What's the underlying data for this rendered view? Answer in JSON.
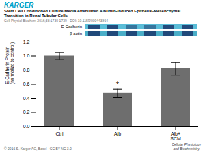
{
  "chart_data": {
    "type": "bar",
    "title": "Stem Cell Conditioned Culture Media Attenuated Albumin-Induced Epithelial-Mesenchymal\nTransition in Renal Tubular Cells",
    "subtitle": "Cell Physiol Biochem 2016;38:1730-1739 · DOI: 10.1159/000443864",
    "header": "KARGER",
    "blot_labels": [
      "E-Cadherin",
      "β-actin"
    ],
    "footer": [
      "© 2016 S. Karger AG, Basel · CC BY-NC 3.0",
      "Cellular Physiology\nand Biochemistry"
    ],
    "categories": [
      "Ctrl",
      "Alb",
      "Alb+\nSCM"
    ],
    "values": [
      1.0,
      0.47,
      0.82
    ],
    "errors": [
      0.05,
      0.06,
      0.09
    ],
    "color": "#6e6e6e",
    "ylabel": "E-Cadherin Protein\n(normalize to control)",
    "ylim": [
      0,
      1.2
    ],
    "yticks": [
      {
        "value": 0.0,
        "label": "0.0"
      },
      0.2,
      0.4,
      0.6,
      0.8,
      {
        "value": 1.0,
        "label": "1.0"
      },
      1.2
    ],
    "annotations": [
      {
        "text": "*",
        "category": "Alb"
      }
    ],
    "grid": false
  }
}
